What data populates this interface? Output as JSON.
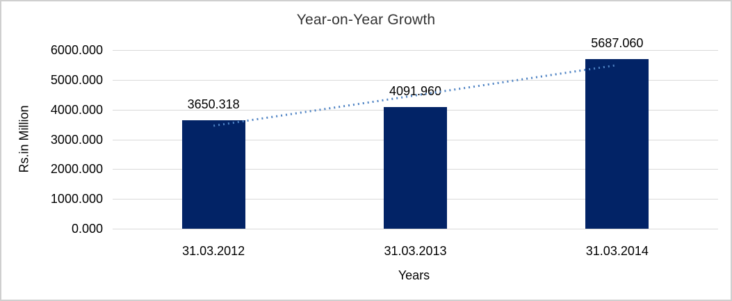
{
  "chart_data": {
    "type": "bar",
    "title": "Year-on-Year Growth",
    "xlabel": "Years",
    "ylabel": "Rs.in Million",
    "categories": [
      "31.03.2012",
      "31.03.2013",
      "31.03.2014"
    ],
    "values": [
      3650.318,
      4091.96,
      5687.06
    ],
    "data_labels": [
      "3650.318",
      "4091.960",
      "5687.060"
    ],
    "ylim": [
      0,
      6000
    ],
    "ytick_step": 1000,
    "ytick_labels": [
      "0.000",
      "1000.000",
      "2000.000",
      "3000.000",
      "4000.000",
      "5000.000",
      "6000.000"
    ],
    "grid": true,
    "legend": "none",
    "trendline": {
      "type": "linear",
      "style": "dotted",
      "color": "#4d82c3"
    },
    "colors": {
      "bar": "#022366",
      "gridline": "#d9d9d9",
      "text": "#000000",
      "title_text": "#333333",
      "frame_border": "#cfcfcf",
      "background": "#ffffff"
    }
  }
}
